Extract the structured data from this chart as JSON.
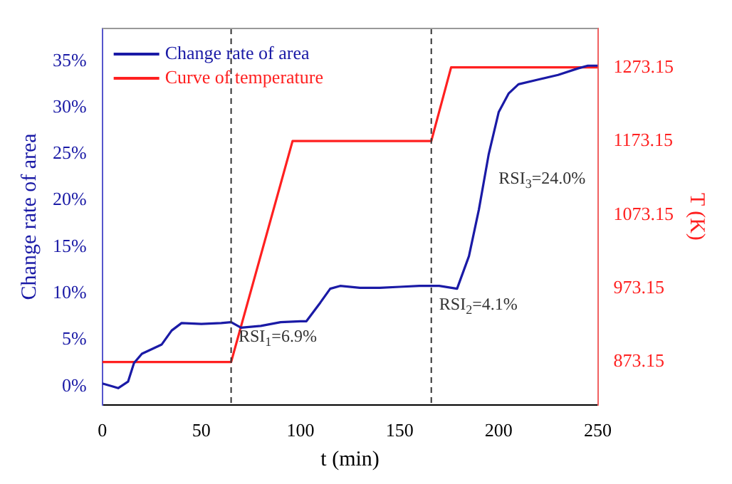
{
  "chart_data": {
    "type": "line",
    "xlabel": "t (min)",
    "ylabel": "Change rate of area",
    "y2label": "T (K)",
    "xlim": [
      0,
      250
    ],
    "xticks": [
      0,
      50,
      100,
      150,
      200,
      250
    ],
    "ylim": [
      -2,
      38.5
    ],
    "yticks": [
      {
        "value": 0,
        "label": "0%"
      },
      {
        "value": 5,
        "label": "5%"
      },
      {
        "value": 10,
        "label": "10%"
      },
      {
        "value": 15,
        "label": "15%"
      },
      {
        "value": 20,
        "label": "20%"
      },
      {
        "value": 25,
        "label": "25%"
      },
      {
        "value": 30,
        "label": "30%"
      },
      {
        "value": 35,
        "label": "35%"
      }
    ],
    "y2lim": [
      815,
      1326
    ],
    "y2ticks": [
      873.15,
      973.15,
      1073.15,
      1173.15,
      1273.15
    ],
    "grid": false,
    "legend": "top left",
    "marker": "none",
    "line_style": "solid",
    "series": [
      {
        "name": "Change rate of area",
        "color": "#1a1aa6",
        "x": [
          0,
          5,
          8,
          13,
          16,
          20,
          25,
          30,
          35,
          40,
          50,
          60,
          65,
          70,
          80,
          90,
          100,
          103,
          110,
          115,
          120,
          130,
          140,
          150,
          160,
          170,
          179,
          185,
          190,
          195,
          200,
          205,
          210,
          220,
          230,
          240,
          245,
          250
        ],
        "values": [
          0.3,
          0,
          -0.2,
          0.5,
          2.5,
          3.5,
          4,
          4.5,
          6,
          6.8,
          6.7,
          6.8,
          6.9,
          6.3,
          6.5,
          6.9,
          7,
          7,
          9,
          10.5,
          10.8,
          10.6,
          10.6,
          10.7,
          10.8,
          10.8,
          10.5,
          14,
          19,
          25,
          29.5,
          31.5,
          32.5,
          33,
          33.5,
          34.2,
          34.5,
          34.5
        ]
      },
      {
        "name": "Curve of temperature",
        "color": "#ff2020",
        "axis": "y2",
        "x": [
          0,
          65,
          96,
          166,
          176,
          250
        ],
        "values": [
          873.15,
          873.15,
          1173.15,
          1173.15,
          1273.15,
          1273.15
        ]
      }
    ],
    "ref_lines": [
      {
        "axis": "x",
        "value": 65,
        "line_style": "dashed",
        "color": "#333333"
      },
      {
        "axis": "x",
        "value": 166,
        "line_style": "dashed",
        "color": "#333333"
      }
    ],
    "annotations": [
      "RSI$_{1}$=6.9%",
      "RSI$_{2}$=4.1%",
      "RSI$_{3}$=24.0%"
    ]
  }
}
